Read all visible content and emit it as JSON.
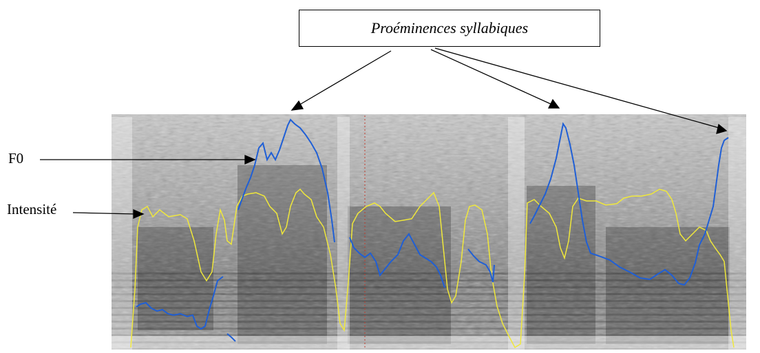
{
  "title": "Proéminences syllabiques",
  "labels": {
    "f0": "F0",
    "intensity": "Intensité"
  },
  "colors": {
    "f0_curve": "#1f5fd6",
    "intensity_curve": "#f0e83a",
    "marker_line": "#c0392b",
    "spectrogram_light": "#e6e6e6",
    "spectrogram_dark": "#2a2a2a",
    "arrows": "#000000"
  }
}
